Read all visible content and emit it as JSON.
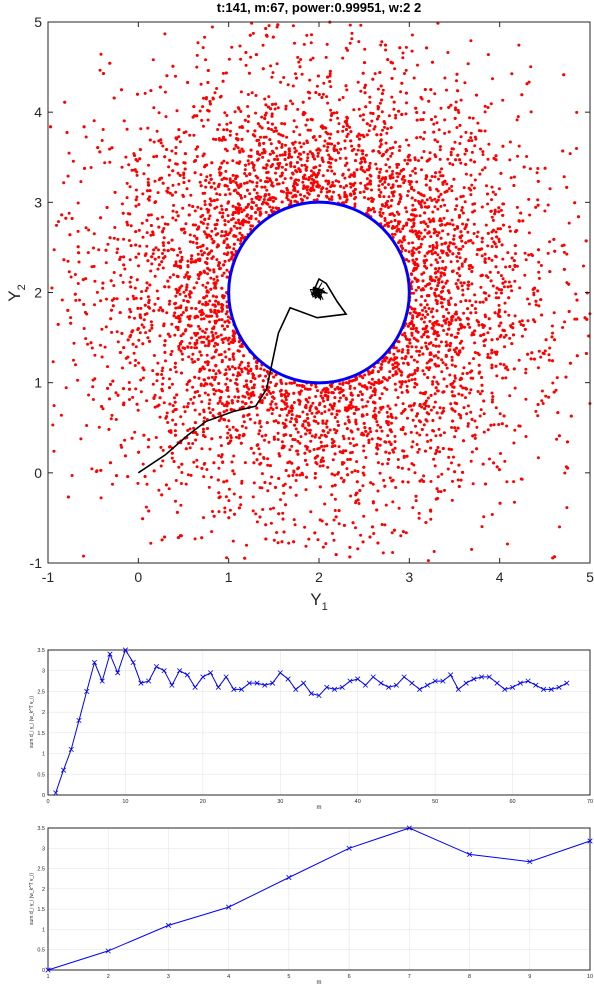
{
  "chart_data": [
    {
      "type": "scatter",
      "title": "t:141, m:67, power:0.99951, w:2         2",
      "xlabel": "Y",
      "xlabel_sub": "1",
      "ylabel": "Y",
      "ylabel_sub": "2",
      "xlim": [
        -1,
        5
      ],
      "ylim": [
        -1,
        5
      ],
      "xticks": [
        "-1",
        "0",
        "1",
        "2",
        "3",
        "4",
        "5"
      ],
      "yticks": [
        "-1",
        "0",
        "1",
        "2",
        "3",
        "4",
        "5"
      ],
      "grid": false,
      "point_cloud": {
        "color": "#ff0000",
        "center": [
          2,
          2
        ],
        "inner_radius": 1.0,
        "approx_count": 6000
      },
      "circle": {
        "center": [
          2,
          2
        ],
        "radius": 1.0,
        "color": "#0000ff"
      },
      "path": {
        "color": "#000000",
        "points": [
          [
            0,
            0
          ],
          [
            0.3,
            0.2
          ],
          [
            0.55,
            0.42
          ],
          [
            0.75,
            0.57
          ],
          [
            1.05,
            0.68
          ],
          [
            1.3,
            0.74
          ],
          [
            1.42,
            0.93
          ],
          [
            1.55,
            1.55
          ],
          [
            1.68,
            1.83
          ],
          [
            1.98,
            1.72
          ],
          [
            2.3,
            1.76
          ],
          [
            2.2,
            1.9
          ],
          [
            2.08,
            2.1
          ],
          [
            2.0,
            2.15
          ],
          [
            1.92,
            1.97
          ],
          [
            1.98,
            2.02
          ]
        ]
      }
    },
    {
      "type": "line",
      "xlabel": "m",
      "ylabel": "sum d_i γ_i (w_k^T v_i)",
      "xlim": [
        0,
        70
      ],
      "ylim": [
        0,
        3.5
      ],
      "xticks": [
        "0",
        "10",
        "20",
        "30",
        "40",
        "50",
        "60",
        "70"
      ],
      "yticks": [
        "0",
        "0.5",
        "1",
        "1.5",
        "2",
        "2.5",
        "3",
        "3.5"
      ],
      "grid": true,
      "marker": "x",
      "color": "#0000ff",
      "x": [
        1,
        2,
        3,
        4,
        5,
        6,
        7,
        8,
        9,
        10,
        11,
        12,
        13,
        14,
        15,
        16,
        17,
        18,
        19,
        20,
        21,
        22,
        23,
        24,
        25,
        26,
        27,
        28,
        29,
        30,
        31,
        32,
        33,
        34,
        35,
        36,
        37,
        38,
        39,
        40,
        41,
        42,
        43,
        44,
        45,
        46,
        47,
        48,
        49,
        50,
        51,
        52,
        53,
        54,
        55,
        56,
        57,
        58,
        59,
        60,
        61,
        62,
        63,
        64,
        65,
        66,
        67
      ],
      "values": [
        0.05,
        0.6,
        1.1,
        1.8,
        2.5,
        3.2,
        2.75,
        3.4,
        2.95,
        3.5,
        3.2,
        2.7,
        2.75,
        3.1,
        3.0,
        2.65,
        3.0,
        2.9,
        2.6,
        2.85,
        2.95,
        2.6,
        2.85,
        2.55,
        2.55,
        2.7,
        2.7,
        2.65,
        2.7,
        2.95,
        2.8,
        2.55,
        2.7,
        2.45,
        2.4,
        2.6,
        2.55,
        2.6,
        2.75,
        2.8,
        2.65,
        2.85,
        2.7,
        2.6,
        2.65,
        2.85,
        2.7,
        2.55,
        2.65,
        2.75,
        2.75,
        2.9,
        2.55,
        2.7,
        2.8,
        2.85,
        2.85,
        2.7,
        2.55,
        2.6,
        2.7,
        2.75,
        2.65,
        2.55,
        2.55,
        2.6,
        2.7
      ]
    },
    {
      "type": "line",
      "xlabel": "m",
      "ylabel": "sum d_i γ_i (w_k^T v_i)",
      "xlim": [
        1,
        10
      ],
      "ylim": [
        0,
        3.5
      ],
      "xticks": [
        "1",
        "2",
        "3",
        "4",
        "5",
        "6",
        "7",
        "8",
        "9",
        "10"
      ],
      "yticks": [
        "0",
        "0.5",
        "1",
        "1.5",
        "2",
        "2.5",
        "3",
        "3.5"
      ],
      "grid": true,
      "marker": "x",
      "color": "#0000ff",
      "x": [
        1,
        2,
        3,
        4,
        5,
        6,
        7,
        8,
        9,
        10
      ],
      "values": [
        0.0,
        0.47,
        1.1,
        1.55,
        2.28,
        3.0,
        3.5,
        2.85,
        2.67,
        3.18
      ]
    }
  ]
}
